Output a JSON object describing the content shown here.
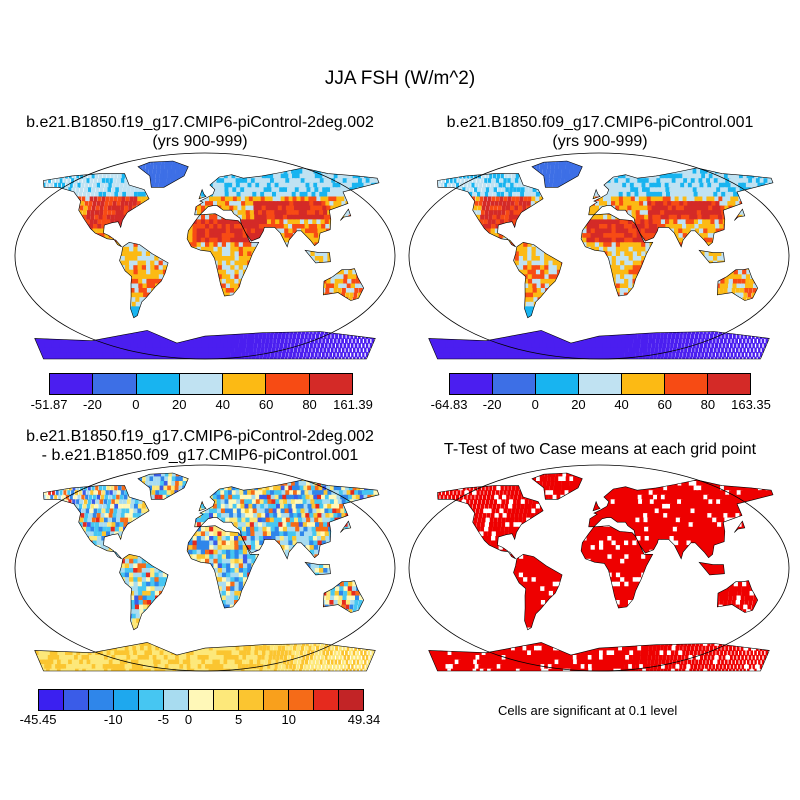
{
  "figure": {
    "title": "JJA FSH (W/m^2)"
  },
  "panels": [
    {
      "id": "case1",
      "title_line1": "b.e21.B1850.f19_g17.CMIP6-piControl-2deg.002",
      "title_line2": "(yrs 900-999)",
      "scheme": "absolute"
    },
    {
      "id": "case2",
      "title_line1": "b.e21.B1850.f09_g17.CMIP6-piControl.001",
      "title_line2": "(yrs 900-999)",
      "scheme": "absolute"
    },
    {
      "id": "difference",
      "title_line1": "b.e21.B1850.f19_g17.CMIP6-piControl-2deg.002",
      "title_line2": "- b.e21.B1850.f09_g17.CMIP6-piControl.001",
      "scheme": "difference"
    },
    {
      "id": "ttest",
      "title_line1": "T-Test of two Case means at each grid point",
      "title_line2": "",
      "scheme": "significance"
    }
  ],
  "colorbars": {
    "case1": {
      "colors": [
        "#4b1ef0",
        "#3d6fe6",
        "#18b4f0",
        "#c0e2f2",
        "#fcba14",
        "#f74b14",
        "#d42a27"
      ],
      "labels": [
        "-51.87",
        "-20",
        "0",
        "20",
        "40",
        "60",
        "80",
        "161.39"
      ]
    },
    "case2": {
      "colors": [
        "#4b1ef0",
        "#3d6fe6",
        "#18b4f0",
        "#c0e2f2",
        "#fcba14",
        "#f74b14",
        "#d42a27"
      ],
      "labels": [
        "-64.83",
        "-20",
        "0",
        "20",
        "40",
        "60",
        "80",
        "163.35"
      ]
    },
    "difference": {
      "colors": [
        "#3b20f0",
        "#3a5ce8",
        "#2f86ea",
        "#1ea8ee",
        "#46c6f2",
        "#a8dcf0",
        "#fff8b8",
        "#fde87a",
        "#fbc530",
        "#f9a01c",
        "#f56b18",
        "#e52a1e",
        "#c22426"
      ],
      "labels": [
        "-45.45",
        "-10",
        "-5",
        "0",
        "5",
        "10",
        "49.34"
      ]
    }
  },
  "significance_note": "Cells are significant at 0.1 level",
  "palette": {
    "ocean": "#ffffff",
    "coast": "#000000",
    "significant": "#ee0000"
  }
}
